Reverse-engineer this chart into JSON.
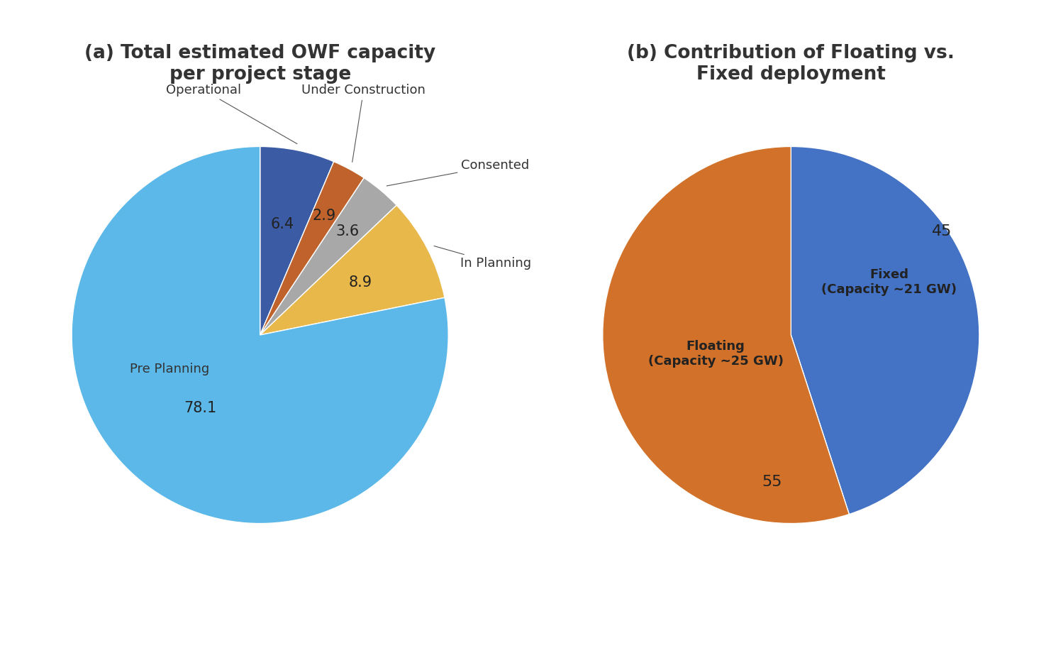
{
  "chart_a": {
    "title": "(a) Total estimated OWF capacity\nper project stage",
    "slices": [
      6.4,
      2.9,
      3.6,
      8.9,
      78.1
    ],
    "labels": [
      "Operational",
      "Under Construction",
      "Consented",
      "In Planning",
      "Pre Planning"
    ],
    "colors": [
      "#3B5BA5",
      "#C0622B",
      "#A8A8A8",
      "#E8B84B",
      "#5BB8E8"
    ],
    "pct_labels": [
      "6.4",
      "2.9",
      "3.6",
      "8.9",
      "78.1"
    ],
    "startangle": 90,
    "counterclock": false
  },
  "chart_b": {
    "title": "(b) Contribution of Floating vs.\nFixed deployment",
    "slices": [
      45,
      55
    ],
    "labels": [
      "Fixed\n(Capacity ~21 GW)",
      "Floating\n(Capacity ~25 GW)"
    ],
    "colors": [
      "#4472C4",
      "#D2722A"
    ],
    "pct_labels": [
      "45",
      "55"
    ],
    "startangle": 90,
    "counterclock": false
  },
  "background_color": "#FFFFFF",
  "title_fontsize": 19,
  "label_fontsize": 13,
  "pct_fontsize": 15
}
